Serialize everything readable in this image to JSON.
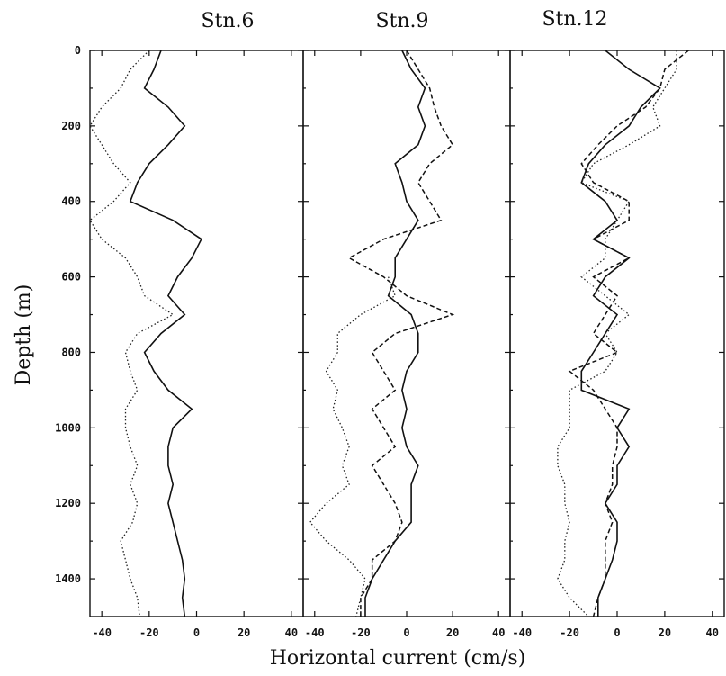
{
  "chart_data": {
    "type": "line",
    "xlabel": "Horizontal current (cm/s)",
    "ylabel": "Depth (m)",
    "xlim": [
      -45,
      45
    ],
    "ylim": [
      0,
      1500
    ],
    "y_inverted": true,
    "shared_y": true,
    "xticks": [
      -40,
      -20,
      0,
      20,
      40
    ],
    "yticks": [
      0,
      200,
      400,
      600,
      800,
      1000,
      1200,
      1400
    ],
    "legend": "none",
    "panels": [
      {
        "title": "Stn.6",
        "series": [
          {
            "style": "solid",
            "depth": [
              0,
              50,
              100,
              150,
              200,
              250,
              300,
              350,
              400,
              450,
              500,
              550,
              600,
              650,
              700,
              750,
              800,
              850,
              900,
              950,
              1000,
              1050,
              1100,
              1150,
              1200,
              1250,
              1300,
              1350,
              1400,
              1450,
              1500
            ],
            "values": [
              -15,
              -18,
              -22,
              -12,
              -5,
              -12,
              -20,
              -25,
              -28,
              -10,
              2,
              -2,
              -8,
              -12,
              -5,
              -15,
              -22,
              -18,
              -12,
              -2,
              -10,
              -12,
              -12,
              -10,
              -12,
              -10,
              -8,
              -6,
              -5,
              -6,
              -5
            ]
          },
          {
            "style": "dotted",
            "depth": [
              0,
              50,
              100,
              150,
              200,
              250,
              300,
              350,
              400,
              450,
              500,
              550,
              600,
              650,
              700,
              750,
              800,
              850,
              900,
              950,
              1000,
              1050,
              1100,
              1150,
              1200,
              1250,
              1300,
              1350,
              1400,
              1450,
              1500
            ],
            "values": [
              -20,
              -28,
              -32,
              -40,
              -45,
              -40,
              -35,
              -28,
              -35,
              -45,
              -40,
              -30,
              -25,
              -22,
              -10,
              -25,
              -30,
              -28,
              -25,
              -30,
              -30,
              -28,
              -25,
              -28,
              -25,
              -27,
              -32,
              -30,
              -28,
              -25,
              -24
            ]
          }
        ]
      },
      {
        "title": "Stn.9",
        "series": [
          {
            "style": "solid",
            "depth": [
              0,
              50,
              100,
              150,
              200,
              250,
              300,
              350,
              400,
              450,
              500,
              550,
              600,
              650,
              700,
              750,
              800,
              850,
              900,
              950,
              1000,
              1050,
              1100,
              1150,
              1200,
              1250,
              1300,
              1350,
              1400,
              1450,
              1500
            ],
            "values": [
              -2,
              2,
              8,
              5,
              8,
              5,
              -5,
              -2,
              0,
              5,
              0,
              -5,
              -5,
              -8,
              2,
              5,
              5,
              0,
              -2,
              0,
              -2,
              0,
              5,
              2,
              2,
              2,
              -5,
              -10,
              -15,
              -18,
              -18
            ]
          },
          {
            "style": "dashed",
            "depth": [
              0,
              50,
              100,
              150,
              200,
              250,
              300,
              350,
              400,
              450,
              500,
              550,
              600,
              650,
              700,
              750,
              800,
              850,
              900,
              950,
              1000,
              1050,
              1100,
              1150,
              1200,
              1250,
              1300,
              1350,
              1400,
              1450,
              1500
            ],
            "values": [
              0,
              5,
              10,
              12,
              15,
              20,
              10,
              5,
              10,
              15,
              -10,
              -25,
              -10,
              0,
              20,
              -5,
              -15,
              -10,
              -5,
              -15,
              -10,
              -5,
              -15,
              -10,
              -5,
              -2,
              -5,
              -15,
              -15,
              -20,
              -20
            ]
          },
          {
            "style": "dotted",
            "depth": [
              600,
              650,
              700,
              750,
              800,
              850,
              900,
              950,
              1000,
              1050,
              1100,
              1150,
              1200,
              1250,
              1300,
              1350,
              1400,
              1450,
              1500
            ],
            "values": [
              -8,
              -5,
              -20,
              -30,
              -30,
              -35,
              -30,
              -32,
              -28,
              -25,
              -28,
              -25,
              -35,
              -42,
              -35,
              -25,
              -18,
              -20,
              -22
            ]
          }
        ]
      },
      {
        "title": "Stn.12",
        "series": [
          {
            "style": "solid",
            "depth": [
              0,
              50,
              100,
              150,
              200,
              250,
              300,
              350,
              400,
              450,
              500,
              550,
              600,
              650,
              700,
              750,
              800,
              850,
              900,
              950,
              1000,
              1050,
              1100,
              1150,
              1200,
              1250,
              1300,
              1350,
              1400,
              1450,
              1500
            ],
            "values": [
              -5,
              5,
              18,
              10,
              5,
              -5,
              -12,
              -15,
              -5,
              0,
              -10,
              5,
              -5,
              -10,
              0,
              -5,
              -10,
              -15,
              -15,
              5,
              0,
              5,
              0,
              0,
              -5,
              0,
              0,
              -2,
              -5,
              -8,
              -8
            ]
          },
          {
            "style": "dashed",
            "depth": [
              0,
              50,
              100,
              150,
              200,
              250,
              300,
              350,
              400,
              450,
              500,
              550,
              600,
              650,
              700,
              750,
              800,
              850,
              900,
              950,
              1000,
              1050,
              1100,
              1150,
              1200,
              1250,
              1300,
              1350,
              1400,
              1450,
              1500
            ],
            "values": [
              30,
              20,
              18,
              12,
              0,
              -8,
              -15,
              -10,
              5,
              5,
              -10,
              5,
              -10,
              0,
              -5,
              -10,
              0,
              -20,
              -10,
              -5,
              0,
              0,
              -2,
              -2,
              -5,
              -2,
              -5,
              -5,
              -5,
              -8,
              -10
            ]
          },
          {
            "style": "dotted",
            "depth": [
              0,
              50,
              100,
              150,
              200,
              250,
              300,
              350,
              400,
              450,
              500,
              550,
              600,
              650,
              700,
              750,
              800,
              850,
              900,
              950,
              1000,
              1050,
              1100,
              1150,
              1200,
              1250,
              1300,
              1350,
              1400,
              1450,
              1500
            ],
            "values": [
              25,
              25,
              20,
              15,
              18,
              5,
              -10,
              -15,
              5,
              0,
              -5,
              -5,
              -15,
              -5,
              5,
              -5,
              0,
              -5,
              -20,
              -20,
              -20,
              -25,
              -25,
              -22,
              -22,
              -20,
              -22,
              -22,
              -25,
              -20,
              -12
            ]
          }
        ]
      }
    ]
  }
}
